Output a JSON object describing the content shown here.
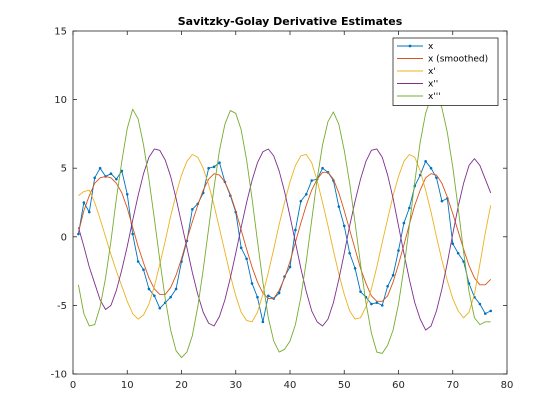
{
  "chart_data": {
    "type": "line",
    "title": "Savitzky-Golay Derivative Estimates",
    "xlabel": "",
    "ylabel": "",
    "xlim": [
      0,
      80
    ],
    "ylim": [
      -10,
      15
    ],
    "x_ticks": [
      0,
      10,
      20,
      30,
      40,
      50,
      60,
      70,
      80
    ],
    "y_ticks": [
      -10,
      -5,
      0,
      5,
      10,
      15
    ],
    "grid": false,
    "legend_position": "top-right",
    "series": [
      {
        "name": "x",
        "color": "#0072BD",
        "marker": "point",
        "x": [
          1,
          2,
          3,
          4,
          5,
          6,
          7,
          8,
          9,
          10,
          11,
          12,
          13,
          14,
          15,
          16,
          17,
          18,
          19,
          20,
          21,
          22,
          23,
          24,
          25,
          26,
          27,
          28,
          29,
          30,
          31,
          32,
          33,
          34,
          35,
          36,
          37,
          38,
          39,
          40,
          41,
          42,
          43,
          44,
          45,
          46,
          47,
          48,
          49,
          50,
          51,
          52,
          53,
          54,
          55,
          56,
          57,
          58,
          59,
          60,
          61,
          62,
          63,
          64,
          65,
          66,
          67,
          68,
          69,
          70,
          71,
          72,
          73,
          74,
          75,
          76,
          77
        ],
        "y": [
          0.2,
          2.5,
          1.8,
          4.3,
          5.0,
          4.4,
          4.6,
          4.2,
          4.8,
          3.1,
          0.2,
          -1.8,
          -2.4,
          -3.8,
          -4.3,
          -5.2,
          -4.8,
          -4.4,
          -3.8,
          -1.8,
          -0.3,
          2.0,
          2.4,
          3.2,
          5.0,
          5.1,
          5.4,
          4.0,
          3.0,
          1.8,
          -0.8,
          -1.6,
          -3.4,
          -4.4,
          -6.2,
          -4.3,
          -4.5,
          -4.1,
          -2.9,
          -2.2,
          0.5,
          2.6,
          3.1,
          4.1,
          4.2,
          5.0,
          4.7,
          4.1,
          2.2,
          0.8,
          -1.2,
          -2.3,
          -4.0,
          -4.4,
          -4.9,
          -4.8,
          -5.0,
          -3.6,
          -2.8,
          -1.0,
          1.0,
          2.1,
          3.7,
          4.5,
          5.5,
          5.0,
          4.3,
          2.6,
          2.8,
          -0.5,
          -1.2,
          -1.8,
          -3.4,
          -4.4,
          -4.9,
          -5.6,
          -5.4
        ]
      },
      {
        "name": "x (smoothed)",
        "color": "#D95319",
        "marker": "none",
        "x": [
          1,
          2,
          3,
          4,
          5,
          6,
          7,
          8,
          9,
          10,
          11,
          12,
          13,
          14,
          15,
          16,
          17,
          18,
          19,
          20,
          21,
          22,
          23,
          24,
          25,
          26,
          27,
          28,
          29,
          30,
          31,
          32,
          33,
          34,
          35,
          36,
          37,
          38,
          39,
          40,
          41,
          42,
          43,
          44,
          45,
          46,
          47,
          48,
          49,
          50,
          51,
          52,
          53,
          54,
          55,
          56,
          57,
          58,
          59,
          60,
          61,
          62,
          63,
          64,
          65,
          66,
          67,
          68,
          69,
          70,
          71,
          72,
          73,
          74,
          75,
          76,
          77
        ],
        "y": [
          0.3,
          1.9,
          3.0,
          3.9,
          4.3,
          4.4,
          4.3,
          3.9,
          3.2,
          2.1,
          0.7,
          -0.7,
          -1.9,
          -3.0,
          -3.8,
          -4.2,
          -4.2,
          -3.7,
          -2.8,
          -1.6,
          -0.2,
          1.1,
          2.3,
          3.4,
          4.2,
          4.6,
          4.5,
          4.0,
          3.1,
          1.9,
          0.5,
          -0.9,
          -2.2,
          -3.3,
          -4.1,
          -4.5,
          -4.5,
          -3.9,
          -3.0,
          -1.8,
          -0.4,
          1.0,
          2.3,
          3.4,
          4.2,
          4.7,
          4.7,
          4.2,
          3.2,
          1.9,
          0.5,
          -0.9,
          -2.3,
          -3.4,
          -4.3,
          -4.7,
          -4.7,
          -4.3,
          -3.3,
          -2.0,
          -0.6,
          0.9,
          2.3,
          3.4,
          4.3,
          4.6,
          4.5,
          3.9,
          2.9,
          1.7,
          0.4,
          -0.9,
          -2.1,
          -3.0,
          -3.5,
          -3.5,
          -3.1
        ]
      },
      {
        "name": "x'",
        "color": "#EDB120",
        "marker": "none",
        "x": [
          1,
          2,
          3,
          4,
          5,
          6,
          7,
          8,
          9,
          10,
          11,
          12,
          13,
          14,
          15,
          16,
          17,
          18,
          19,
          20,
          21,
          22,
          23,
          24,
          25,
          26,
          27,
          28,
          29,
          30,
          31,
          32,
          33,
          34,
          35,
          36,
          37,
          38,
          39,
          40,
          41,
          42,
          43,
          44,
          45,
          46,
          47,
          48,
          49,
          50,
          51,
          52,
          53,
          54,
          55,
          56,
          57,
          58,
          59,
          60,
          61,
          62,
          63,
          64,
          65,
          66,
          67,
          68,
          69,
          70,
          71,
          72,
          73,
          74,
          75,
          76,
          77
        ],
        "y": [
          3.0,
          3.3,
          3.4,
          2.5,
          1.3,
          0.0,
          -1.3,
          -2.5,
          -3.6,
          -4.7,
          -5.6,
          -6.0,
          -5.7,
          -4.9,
          -3.6,
          -2.0,
          -0.3,
          1.5,
          3.1,
          4.5,
          5.5,
          6.0,
          5.8,
          5.0,
          3.8,
          2.3,
          0.6,
          -1.1,
          -2.8,
          -4.3,
          -5.5,
          -6.1,
          -6.2,
          -5.5,
          -4.2,
          -2.6,
          -0.9,
          0.9,
          2.5,
          4.0,
          5.2,
          5.9,
          6.0,
          5.4,
          4.1,
          2.5,
          0.8,
          -1.0,
          -2.7,
          -4.2,
          -5.4,
          -6.0,
          -5.9,
          -5.1,
          -3.8,
          -2.2,
          -0.4,
          1.3,
          3.0,
          4.4,
          5.5,
          6.0,
          5.8,
          4.8,
          3.4,
          1.8,
          0.0,
          -1.7,
          -3.2,
          -4.5,
          -5.4,
          -5.9,
          -5.5,
          -4.2,
          -2.0,
          0.3,
          2.3
        ]
      },
      {
        "name": "x''",
        "color": "#7E2F8E",
        "marker": "none",
        "x": [
          1,
          2,
          3,
          4,
          5,
          6,
          7,
          8,
          9,
          10,
          11,
          12,
          13,
          14,
          15,
          16,
          17,
          18,
          19,
          20,
          21,
          22,
          23,
          24,
          25,
          26,
          27,
          28,
          29,
          30,
          31,
          32,
          33,
          34,
          35,
          36,
          37,
          38,
          39,
          40,
          41,
          42,
          43,
          44,
          45,
          46,
          47,
          48,
          49,
          50,
          51,
          52,
          53,
          54,
          55,
          56,
          57,
          58,
          59,
          60,
          61,
          62,
          63,
          64,
          65,
          66,
          67,
          68,
          69,
          70,
          71,
          72,
          73,
          74,
          75,
          76,
          77
        ],
        "y": [
          0.7,
          -0.7,
          -2.2,
          -3.4,
          -4.6,
          -5.3,
          -5.0,
          -3.9,
          -2.4,
          -0.7,
          1.2,
          3.0,
          4.6,
          5.8,
          6.4,
          6.3,
          5.6,
          4.4,
          2.8,
          1.0,
          -0.8,
          -2.6,
          -4.2,
          -5.5,
          -6.3,
          -6.5,
          -5.8,
          -4.6,
          -3.0,
          -1.2,
          0.7,
          2.5,
          4.1,
          5.4,
          6.2,
          6.4,
          5.9,
          4.8,
          3.3,
          1.5,
          -0.4,
          -2.3,
          -4.0,
          -5.4,
          -6.2,
          -6.5,
          -6.0,
          -4.8,
          -3.1,
          -1.2,
          0.8,
          2.6,
          4.2,
          5.5,
          6.3,
          6.4,
          5.8,
          4.5,
          2.8,
          0.8,
          -1.2,
          -3.1,
          -4.8,
          -6.0,
          -6.8,
          -6.5,
          -5.4,
          -3.8,
          -1.9,
          0.2,
          2.2,
          3.9,
          5.2,
          5.7,
          5.2,
          4.2,
          3.2
        ]
      },
      {
        "name": "x'''",
        "color": "#77AC30",
        "marker": "none",
        "x": [
          1,
          2,
          3,
          4,
          5,
          6,
          7,
          8,
          9,
          10,
          11,
          12,
          13,
          14,
          15,
          16,
          17,
          18,
          19,
          20,
          21,
          22,
          23,
          24,
          25,
          26,
          27,
          28,
          29,
          30,
          31,
          32,
          33,
          34,
          35,
          36,
          37,
          38,
          39,
          40,
          41,
          42,
          43,
          44,
          45,
          46,
          47,
          48,
          49,
          50,
          51,
          52,
          53,
          54,
          55,
          56,
          57,
          58,
          59,
          60,
          61,
          62,
          63,
          64,
          65,
          66,
          67,
          68,
          69,
          70,
          71,
          72,
          73,
          74,
          75,
          76,
          77
        ],
        "y": [
          -3.5,
          -5.6,
          -6.5,
          -6.4,
          -5.1,
          -3.0,
          -0.3,
          2.8,
          5.5,
          7.9,
          9.3,
          8.6,
          6.7,
          4.2,
          1.3,
          -1.7,
          -4.5,
          -6.8,
          -8.3,
          -8.8,
          -8.4,
          -7.2,
          -5.1,
          -2.4,
          0.6,
          3.6,
          6.3,
          8.2,
          9.2,
          9.0,
          7.8,
          5.6,
          2.8,
          -0.3,
          -3.3,
          -5.9,
          -7.6,
          -8.4,
          -8.2,
          -7.6,
          -6.4,
          -4.4,
          -1.8,
          1.2,
          4.2,
          6.7,
          8.4,
          9.1,
          8.2,
          6.3,
          3.9,
          1.0,
          -2.0,
          -4.8,
          -7.0,
          -8.4,
          -8.5,
          -7.9,
          -6.8,
          -4.9,
          -2.3,
          0.8,
          4.0,
          6.9,
          9.0,
          10.2,
          10.4,
          9.4,
          7.6,
          5.1,
          2.1,
          -1.1,
          -4.0,
          -5.9,
          -6.4,
          -6.2,
          -6.2
        ]
      }
    ]
  }
}
